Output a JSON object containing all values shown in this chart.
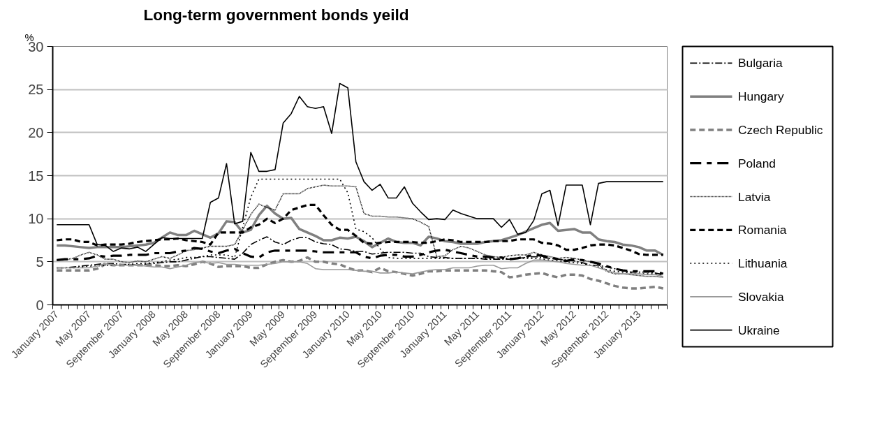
{
  "chart_data": {
    "type": "line",
    "title": "Long-term government bonds yeild",
    "ylabel": "%",
    "categories": [
      "January 2007",
      null,
      null,
      null,
      "May 2007",
      null,
      null,
      null,
      "September 2007",
      null,
      null,
      null,
      "January 2008",
      null,
      null,
      null,
      "May 2008",
      null,
      null,
      null,
      "September 2008",
      null,
      null,
      null,
      "January 2009",
      null,
      null,
      null,
      "May 2009",
      null,
      null,
      null,
      "September 2009",
      null,
      null,
      null,
      "January 2010",
      null,
      null,
      null,
      "May 2010",
      null,
      null,
      null,
      "September 2010",
      null,
      null,
      null,
      "January 2011",
      null,
      null,
      null,
      "May 2011",
      null,
      null,
      null,
      "September 2011",
      null,
      null,
      null,
      "January 2012",
      null,
      null,
      null,
      "May 2012",
      null,
      null,
      null,
      "September 2012",
      null,
      null,
      null,
      "January 2013",
      null,
      null,
      null
    ],
    "ylim": [
      0,
      30
    ],
    "yticks": [
      0,
      5,
      10,
      15,
      20,
      25,
      30
    ],
    "grid": "y",
    "legend": "right",
    "marker": "none",
    "series": [
      {
        "name": "Bulgaria",
        "color": "#000000",
        "line_style": "dashdot",
        "values": [
          4.3,
          4.3,
          4.4,
          4.5,
          4.6,
          4.7,
          4.8,
          4.8,
          4.7,
          4.7,
          4.6,
          4.7,
          4.8,
          4.9,
          5.0,
          5.0,
          5.2,
          5.4,
          5.6,
          5.6,
          5.5,
          5.4,
          5.3,
          6.0,
          7.0,
          7.5,
          7.9,
          7.3,
          7.0,
          7.5,
          7.8,
          7.8,
          7.3,
          7.1,
          7.0,
          6.5,
          6.4,
          6.2,
          6.2,
          5.9,
          6.0,
          6.1,
          6.1,
          6.1,
          6.0,
          6.0,
          5.6,
          5.5,
          5.5,
          5.4,
          5.4,
          5.4,
          5.4,
          5.3,
          5.3,
          5.3,
          5.3,
          5.4,
          5.5,
          5.6,
          5.5,
          5.4,
          5.3,
          5.2,
          5.1,
          4.9,
          4.6,
          4.6,
          4.4,
          4.2,
          4.0,
          3.8,
          3.8,
          3.8,
          3.7,
          3.5
        ]
      },
      {
        "name": "Hungary",
        "color": "#808080",
        "line_style": "solid",
        "values": [
          6.9,
          6.9,
          6.8,
          6.7,
          6.6,
          6.7,
          6.7,
          6.7,
          6.7,
          6.8,
          6.9,
          7.0,
          7.2,
          7.8,
          8.4,
          8.1,
          8.1,
          8.6,
          8.2,
          7.8,
          8.3,
          9.7,
          9.6,
          8.4,
          8.7,
          10.4,
          11.5,
          10.6,
          10.0,
          10.1,
          8.8,
          8.4,
          8.0,
          7.5,
          7.5,
          7.8,
          7.7,
          7.9,
          7.4,
          6.7,
          7.2,
          7.7,
          7.3,
          7.2,
          7.2,
          6.9,
          7.9,
          7.7,
          7.4,
          7.3,
          7.1,
          7.1,
          7.1,
          7.3,
          7.4,
          7.5,
          7.8,
          8.1,
          8.5,
          8.9,
          9.3,
          9.5,
          8.6,
          8.7,
          8.8,
          8.4,
          8.4,
          7.6,
          7.4,
          7.3,
          7.0,
          6.9,
          6.7,
          6.3,
          6.3,
          5.8
        ]
      },
      {
        "name": "Czech Republic",
        "color": "#808080",
        "line_style": "dashed",
        "values": [
          4.0,
          4.0,
          4.0,
          4.0,
          4.0,
          4.2,
          4.7,
          4.6,
          4.6,
          4.6,
          4.6,
          4.6,
          4.6,
          4.5,
          4.5,
          4.6,
          4.5,
          4.7,
          5.0,
          4.8,
          4.4,
          4.5,
          4.5,
          4.5,
          4.3,
          4.3,
          4.7,
          5.0,
          5.2,
          5.0,
          5.1,
          5.5,
          5.0,
          5.0,
          4.8,
          4.7,
          4.3,
          4.0,
          4.0,
          3.8,
          4.3,
          3.9,
          3.8,
          3.6,
          3.4,
          3.6,
          3.9,
          3.9,
          4.0,
          4.0,
          4.0,
          4.0,
          4.0,
          4.0,
          3.9,
          3.8,
          3.2,
          3.3,
          3.5,
          3.6,
          3.7,
          3.4,
          3.2,
          3.5,
          3.5,
          3.4,
          3.0,
          2.8,
          2.5,
          2.2,
          2.0,
          1.9,
          1.9,
          2.0,
          2.1,
          1.9
        ]
      },
      {
        "name": "Poland",
        "color": "#000000",
        "line_style": "longdash",
        "values": [
          5.2,
          5.3,
          5.3,
          5.3,
          5.4,
          5.7,
          5.6,
          5.7,
          5.7,
          5.8,
          5.8,
          5.8,
          6.0,
          6.0,
          6.0,
          6.2,
          6.3,
          6.6,
          6.5,
          6.2,
          6.0,
          6.3,
          6.5,
          6.0,
          5.6,
          5.5,
          6.1,
          6.3,
          6.3,
          6.3,
          6.3,
          6.3,
          6.2,
          6.1,
          6.1,
          6.1,
          6.1,
          6.1,
          5.6,
          5.4,
          5.7,
          5.8,
          5.8,
          5.6,
          5.6,
          5.8,
          6.1,
          6.3,
          6.4,
          6.2,
          6.0,
          5.8,
          5.6,
          5.6,
          5.5,
          5.5,
          5.3,
          5.4,
          5.6,
          5.8,
          5.7,
          5.5,
          5.3,
          5.1,
          5.3,
          5.2,
          5.0,
          4.8,
          4.5,
          4.2,
          4.0,
          3.9,
          3.9,
          3.9,
          3.9,
          3.6
        ]
      },
      {
        "name": "Latvia",
        "color": "#000000",
        "line_style": "dotted",
        "values": [
          5.2,
          5.2,
          5.4,
          5.8,
          6.1,
          5.8,
          5.3,
          5.3,
          5.0,
          4.9,
          5.1,
          5.0,
          5.3,
          5.6,
          5.4,
          5.8,
          6.3,
          6.4,
          6.6,
          6.8,
          6.8,
          6.8,
          7.0,
          8.7,
          10.5,
          11.7,
          11.3,
          11.0,
          12.9,
          12.9,
          12.9,
          13.5,
          13.7,
          13.9,
          13.8,
          13.8,
          13.8,
          13.7,
          10.6,
          10.3,
          10.3,
          10.2,
          10.2,
          10.1,
          10.0,
          9.6,
          9.1,
          5.6,
          5.7,
          6.4,
          6.8,
          6.6,
          6.2,
          5.8,
          5.6,
          5.5,
          5.7,
          5.8,
          5.8,
          6.1,
          5.8,
          5.6,
          5.4,
          5.5,
          5.4,
          5.2,
          5.0,
          4.7,
          3.9,
          3.6,
          3.6,
          3.5,
          3.4,
          3.3,
          3.3,
          3.2
        ]
      },
      {
        "name": "Romania",
        "color": "#000000",
        "line_style": "dashed",
        "values": [
          7.5,
          7.6,
          7.6,
          7.3,
          7.3,
          6.9,
          7.0,
          7.0,
          7.0,
          7.1,
          7.3,
          7.4,
          7.5,
          7.6,
          7.6,
          7.7,
          7.5,
          7.4,
          7.3,
          7.0,
          8.4,
          8.4,
          8.4,
          8.4,
          9.0,
          9.3,
          10.0,
          9.5,
          10.0,
          11.0,
          11.3,
          11.6,
          11.6,
          10.4,
          9.3,
          8.7,
          8.7,
          8.0,
          7.2,
          7.1,
          7.2,
          7.3,
          7.3,
          7.3,
          7.3,
          7.2,
          7.2,
          7.4,
          7.6,
          7.5,
          7.3,
          7.3,
          7.3,
          7.3,
          7.4,
          7.4,
          7.4,
          7.6,
          7.6,
          7.6,
          7.2,
          7.1,
          6.9,
          6.4,
          6.4,
          6.6,
          6.9,
          7.0,
          7.0,
          6.9,
          6.6,
          6.3,
          5.9,
          5.8,
          5.8,
          5.8
        ]
      },
      {
        "name": "Lithuania",
        "color": "#000000",
        "line_style": "shortdot",
        "values": [
          4.3,
          4.3,
          4.3,
          4.4,
          4.5,
          4.5,
          4.6,
          4.6,
          4.6,
          4.7,
          4.8,
          4.8,
          4.9,
          5.0,
          5.2,
          5.3,
          5.5,
          5.5,
          5.6,
          5.8,
          5.8,
          5.8,
          5.5,
          9.0,
          12.5,
          14.6,
          14.6,
          14.6,
          14.6,
          14.6,
          14.6,
          14.6,
          14.6,
          14.6,
          14.6,
          14.6,
          13.0,
          8.8,
          8.5,
          7.8,
          6.5,
          5.5,
          5.4,
          5.4,
          5.4,
          5.4,
          5.4,
          5.4,
          5.4,
          5.4,
          5.4,
          5.4,
          5.4,
          5.4,
          5.4,
          5.4,
          5.4,
          5.4,
          5.4,
          5.4,
          5.3,
          5.2,
          5.1,
          5.0,
          4.9,
          4.8,
          4.6,
          4.4,
          4.1,
          3.9,
          3.8,
          3.7,
          3.6,
          3.6,
          3.6,
          3.5
        ]
      },
      {
        "name": "Slovakia",
        "color": "#999999",
        "line_style": "solid",
        "values": [
          4.3,
          4.3,
          4.3,
          4.3,
          4.3,
          4.5,
          4.8,
          4.6,
          4.6,
          4.6,
          4.6,
          4.5,
          4.4,
          4.4,
          4.2,
          4.4,
          4.6,
          4.9,
          5.0,
          4.8,
          4.9,
          4.7,
          4.7,
          4.6,
          4.6,
          4.6,
          4.7,
          4.8,
          5.0,
          5.0,
          5.0,
          4.8,
          4.2,
          4.1,
          4.1,
          4.1,
          4.1,
          4.0,
          3.9,
          3.9,
          3.7,
          3.7,
          3.8,
          3.7,
          3.6,
          3.8,
          4.0,
          4.1,
          4.1,
          4.3,
          4.3,
          4.3,
          4.5,
          4.6,
          4.6,
          4.2,
          4.3,
          4.3,
          4.8,
          5.2,
          5.2,
          5.1,
          5.0,
          4.8,
          4.7,
          4.6,
          4.6,
          4.3,
          4.0,
          3.7,
          3.6,
          3.6,
          3.6,
          3.5,
          3.5,
          3.3
        ]
      },
      {
        "name": "Ukraine",
        "color": "#000000",
        "line_style": "solid",
        "values": [
          9.3,
          9.3,
          9.3,
          9.3,
          9.3,
          7.0,
          6.9,
          6.2,
          6.6,
          6.5,
          6.7,
          6.2,
          7.0,
          7.8,
          7.7,
          7.7,
          7.7,
          7.7,
          7.7,
          11.9,
          12.4,
          16.4,
          9.4,
          9.7,
          17.7,
          15.5,
          15.5,
          15.7,
          21.1,
          22.2,
          24.2,
          23.0,
          22.8,
          23.0,
          19.9,
          25.7,
          25.2,
          16.6,
          14.3,
          13.3,
          14.0,
          12.4,
          12.4,
          13.7,
          11.8,
          10.8,
          9.9,
          10.0,
          9.9,
          11.0,
          10.6,
          10.3,
          10.0,
          10.0,
          10.0,
          9.0,
          9.9,
          8.2,
          8.4,
          9.8,
          12.9,
          13.3,
          9.2,
          13.9,
          13.9,
          13.9,
          9.3,
          14.1,
          14.3,
          14.3,
          14.3,
          14.3,
          14.3,
          14.3,
          14.3,
          14.3
        ]
      }
    ]
  }
}
